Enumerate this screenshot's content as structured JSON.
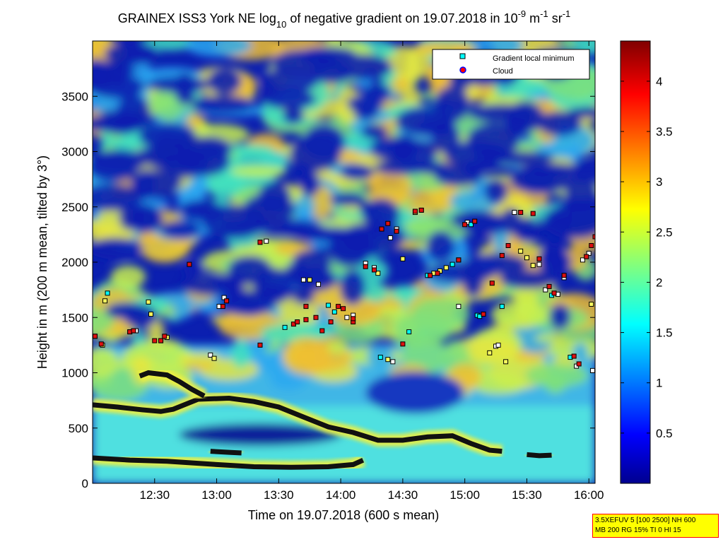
{
  "chart_data": {
    "type": "heatmap",
    "title": {
      "prefix": "GRAINEX ISS3 York NE log",
      "prefix_sub": "10",
      "middle": " of negative gradient on 19.07.2018 in 10",
      "exp1": "-9",
      "unit1": " m",
      "exp2": "-1",
      "unit2": " sr",
      "exp3": "-1"
    },
    "xlabel": "Time on 19.07.2018 (600 s mean)",
    "ylabel": "Height in m (200 m mean, tilted by 3°)",
    "x_ticks": [
      {
        "label": "12:30",
        "t": 12.5
      },
      {
        "label": "13:00",
        "t": 13.0
      },
      {
        "label": "13:30",
        "t": 13.5
      },
      {
        "label": "14:00",
        "t": 14.0
      },
      {
        "label": "14:30",
        "t": 14.5
      },
      {
        "label": "15:00",
        "t": 15.0
      },
      {
        "label": "15:30",
        "t": 15.5
      },
      {
        "label": "16:00",
        "t": 16.0
      }
    ],
    "xlim": [
      12.0,
      16.05
    ],
    "y_ticks": [
      0,
      500,
      1000,
      1500,
      2000,
      2500,
      3000,
      3500
    ],
    "ylim": [
      0,
      4000
    ],
    "colorbar": {
      "range": [
        0,
        4.4
      ],
      "ticks": [
        "0.5",
        "1",
        "1.5",
        "2",
        "2.5",
        "3",
        "3.5",
        "4"
      ],
      "colormap": "jet"
    },
    "legend": {
      "position": "top-right",
      "entries": [
        {
          "label": "Gradient local minimum",
          "marker": "square",
          "color": "#00ffff",
          "edge": "#000000"
        },
        {
          "label": "Cloud",
          "marker": "circle",
          "color": "#ff0000",
          "edge": "#0000ff"
        }
      ]
    },
    "bands": [
      {
        "name": "lower",
        "points": [
          [
            12.0,
            230
          ],
          [
            12.3,
            210
          ],
          [
            12.6,
            200
          ],
          [
            13.0,
            170
          ],
          [
            13.3,
            150
          ],
          [
            13.6,
            145
          ],
          [
            13.9,
            150
          ],
          [
            14.1,
            170
          ],
          [
            14.18,
            210
          ]
        ]
      },
      {
        "name": "main",
        "points": [
          [
            12.0,
            710
          ],
          [
            12.2,
            690
          ],
          [
            12.4,
            665
          ],
          [
            12.55,
            650
          ],
          [
            12.65,
            670
          ],
          [
            12.85,
            760
          ],
          [
            13.1,
            770
          ],
          [
            13.3,
            740
          ],
          [
            13.5,
            690
          ],
          [
            13.7,
            600
          ],
          [
            13.9,
            510
          ],
          [
            14.1,
            460
          ],
          [
            14.3,
            390
          ],
          [
            14.5,
            390
          ],
          [
            14.7,
            420
          ],
          [
            14.9,
            430
          ],
          [
            15.05,
            360
          ],
          [
            15.2,
            300
          ],
          [
            15.3,
            290
          ]
        ]
      },
      {
        "name": "bump",
        "points": [
          [
            12.38,
            970
          ],
          [
            12.45,
            1000
          ],
          [
            12.6,
            980
          ],
          [
            12.7,
            920
          ],
          [
            12.8,
            850
          ],
          [
            12.9,
            790
          ]
        ]
      },
      {
        "name": "short",
        "points": [
          [
            12.95,
            290
          ],
          [
            13.1,
            280
          ],
          [
            13.2,
            275
          ]
        ]
      },
      {
        "name": "tail",
        "points": [
          [
            15.5,
            260
          ],
          [
            15.6,
            250
          ],
          [
            15.7,
            255
          ]
        ]
      }
    ],
    "gradient_minima": [
      [
        12.02,
        1330
      ],
      [
        12.08,
        1250
      ],
      [
        12.1,
        1650
      ],
      [
        12.12,
        1720
      ],
      [
        12.3,
        1370
      ],
      [
        12.35,
        1380
      ],
      [
        12.45,
        1640
      ],
      [
        12.47,
        1530
      ],
      [
        12.55,
        1290
      ],
      [
        12.6,
        1320
      ],
      [
        12.95,
        1160
      ],
      [
        12.98,
        1130
      ],
      [
        13.02,
        1600
      ],
      [
        13.06,
        1680
      ],
      [
        13.35,
        2180
      ],
      [
        13.4,
        2190
      ],
      [
        13.55,
        1410
      ],
      [
        13.7,
        1840
      ],
      [
        13.75,
        1840
      ],
      [
        13.82,
        1800
      ],
      [
        13.9,
        1610
      ],
      [
        13.95,
        1550
      ],
      [
        14.05,
        1500
      ],
      [
        14.1,
        1520
      ],
      [
        14.2,
        1990
      ],
      [
        14.27,
        1950
      ],
      [
        14.3,
        1900
      ],
      [
        14.32,
        1140
      ],
      [
        14.38,
        1120
      ],
      [
        14.42,
        1100
      ],
      [
        14.4,
        2220
      ],
      [
        14.45,
        2300
      ],
      [
        14.5,
        2030
      ],
      [
        14.55,
        1370
      ],
      [
        14.6,
        2450
      ],
      [
        14.65,
        2470
      ],
      [
        14.7,
        1880
      ],
      [
        14.75,
        1900
      ],
      [
        14.8,
        1920
      ],
      [
        14.85,
        1950
      ],
      [
        14.9,
        1980
      ],
      [
        14.95,
        2020
      ],
      [
        14.95,
        1600
      ],
      [
        15.02,
        2360
      ],
      [
        15.05,
        2340
      ],
      [
        15.1,
        1520
      ],
      [
        15.12,
        1510
      ],
      [
        15.2,
        1180
      ],
      [
        15.25,
        1240
      ],
      [
        15.27,
        1250
      ],
      [
        15.3,
        1600
      ],
      [
        15.33,
        1100
      ],
      [
        15.4,
        2450
      ],
      [
        15.45,
        2100
      ],
      [
        15.5,
        2040
      ],
      [
        15.55,
        1970
      ],
      [
        15.6,
        1980
      ],
      [
        15.65,
        1750
      ],
      [
        15.7,
        1700
      ],
      [
        15.75,
        1710
      ],
      [
        15.8,
        1860
      ],
      [
        15.85,
        1140
      ],
      [
        15.9,
        1060
      ],
      [
        15.95,
        2020
      ],
      [
        16.0,
        2080
      ],
      [
        16.02,
        1620
      ],
      [
        16.03,
        1020
      ]
    ],
    "clouds": [
      [
        12.02,
        1330
      ],
      [
        12.07,
        1260
      ],
      [
        12.3,
        1370
      ],
      [
        12.33,
        1380
      ],
      [
        12.55,
        1290
      ],
      [
        12.58,
        1330
      ],
      [
        12.5,
        1290
      ],
      [
        12.78,
        1980
      ],
      [
        13.35,
        2180
      ],
      [
        13.05,
        1600
      ],
      [
        13.08,
        1650
      ],
      [
        13.62,
        1440
      ],
      [
        13.65,
        1460
      ],
      [
        13.72,
        1600
      ],
      [
        13.8,
        1500
      ],
      [
        13.85,
        1380
      ],
      [
        13.92,
        1460
      ],
      [
        13.98,
        1600
      ],
      [
        14.02,
        1580
      ],
      [
        14.1,
        1460
      ],
      [
        14.2,
        1960
      ],
      [
        14.27,
        1930
      ],
      [
        14.33,
        2300
      ],
      [
        14.38,
        2350
      ],
      [
        14.45,
        2280
      ],
      [
        14.6,
        2460
      ],
      [
        14.65,
        2470
      ],
      [
        14.72,
        1880
      ],
      [
        14.78,
        1900
      ],
      [
        14.95,
        2020
      ],
      [
        15.0,
        2340
      ],
      [
        15.08,
        2370
      ],
      [
        15.15,
        1530
      ],
      [
        15.22,
        1810
      ],
      [
        15.3,
        2060
      ],
      [
        15.35,
        2150
      ],
      [
        15.45,
        2450
      ],
      [
        15.55,
        2440
      ],
      [
        15.6,
        2030
      ],
      [
        15.68,
        1780
      ],
      [
        15.72,
        1720
      ],
      [
        15.8,
        1880
      ],
      [
        15.88,
        1150
      ],
      [
        15.92,
        1080
      ],
      [
        15.98,
        2050
      ],
      [
        16.02,
        2150
      ],
      [
        16.05,
        2230
      ],
      [
        13.35,
        1250
      ],
      [
        13.72,
        1480
      ],
      [
        14.1,
        1490
      ],
      [
        14.5,
        1260
      ]
    ]
  },
  "annotation": {
    "line1": "3.5XEFUV 5 [100 2500] NH 600",
    "line2": "MB 200 RG 15% TI 0 HI 15"
  }
}
